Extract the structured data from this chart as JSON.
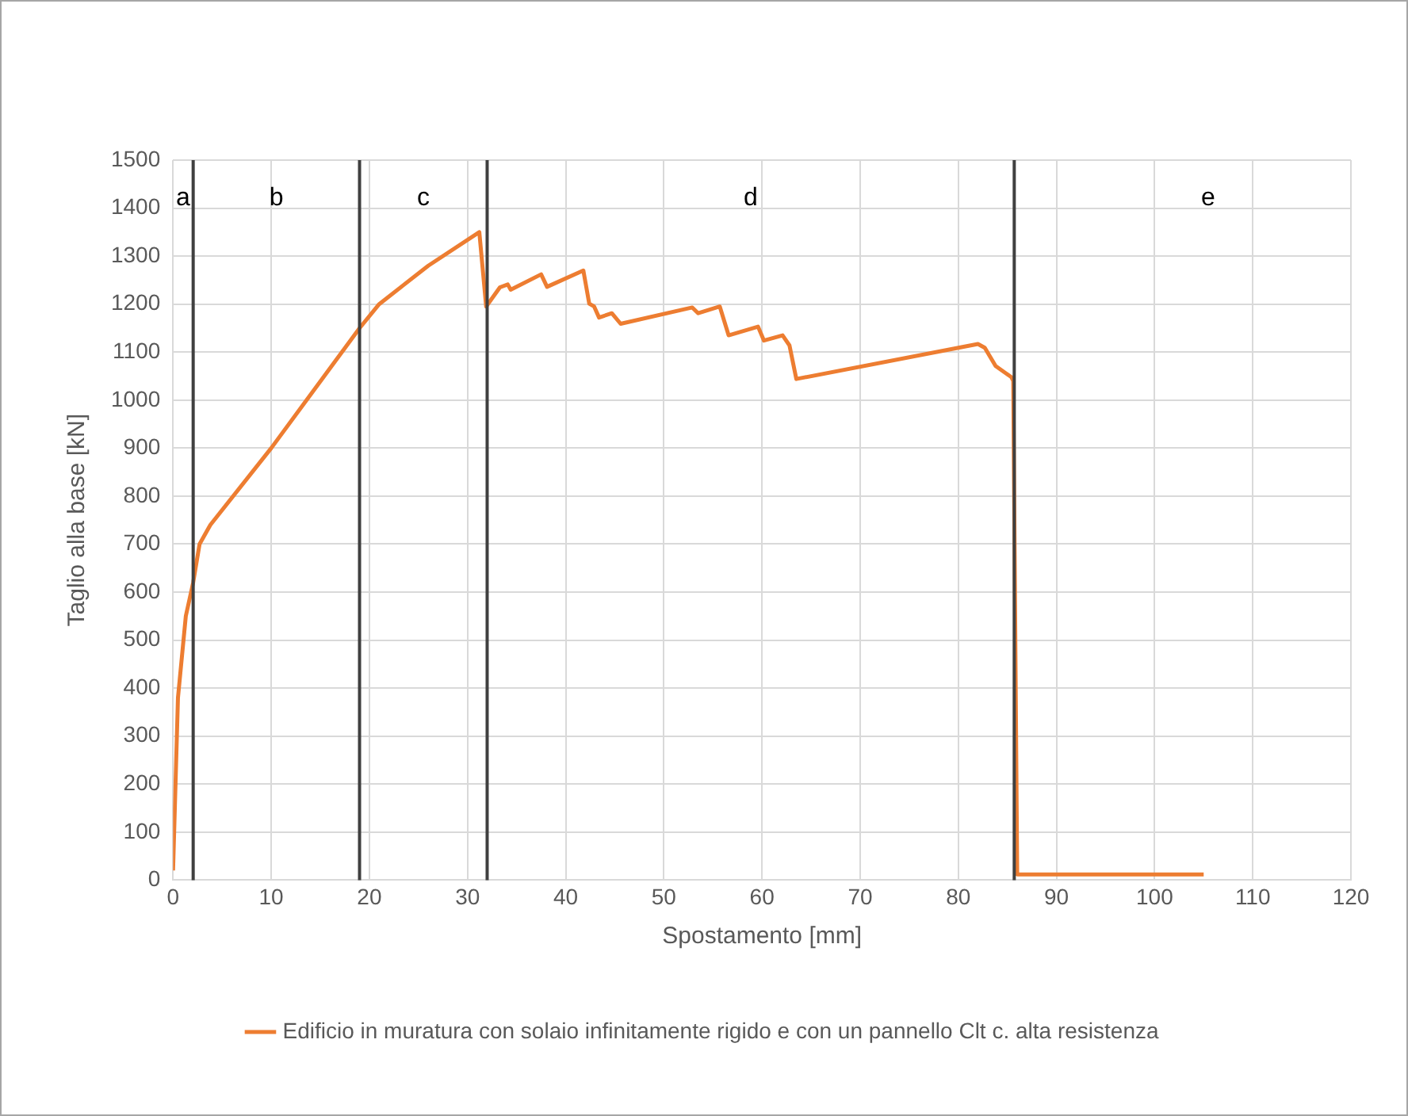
{
  "chart_data": {
    "type": "line",
    "xlabel": "Spostamento [mm]",
    "ylabel": "Taglio alla base [kN]",
    "xlim": [
      0,
      120
    ],
    "xticks": [
      0,
      10,
      20,
      30,
      40,
      50,
      60,
      70,
      80,
      90,
      100,
      110,
      120
    ],
    "ylim": [
      0,
      1500
    ],
    "yticks": [
      0,
      100,
      200,
      300,
      400,
      500,
      600,
      700,
      800,
      900,
      1000,
      1100,
      1200,
      1300,
      1400,
      1500
    ],
    "grid": true,
    "legend": "bottom",
    "marker": "none",
    "line_style": "solid",
    "series": [
      {
        "name": "Edificio in muratura con solaio infinitamente rigido e con un pannello Clt c. alta resistenza",
        "color": "#ed7d31",
        "x": [
          0,
          0.5,
          1.3,
          2.05,
          2.7,
          3.8,
          10,
          19,
          21,
          26,
          31.2,
          31.9,
          33.3,
          34.1,
          34.4,
          37.5,
          38.1,
          41.8,
          42.4,
          42.9,
          43.4,
          44.7,
          45.6,
          52.9,
          53.5,
          55.7,
          56.6,
          59.6,
          60.2,
          62.1,
          62.8,
          63.5,
          82,
          82.7,
          83.8,
          85.4,
          85.6,
          86,
          105
        ],
        "values": [
          20,
          380,
          550,
          620,
          700,
          740,
          900,
          1150,
          1200,
          1280,
          1350,
          1195,
          1235,
          1241,
          1230,
          1262,
          1236,
          1270,
          1201,
          1195,
          1172,
          1181,
          1159,
          1193,
          1181,
          1195,
          1135,
          1153,
          1124,
          1135,
          1114,
          1044,
          1117,
          1109,
          1071,
          1048,
          1040,
          12,
          12
        ]
      }
    ],
    "ref_lines": [
      {
        "axis": "x",
        "value": 2.05,
        "color": "#404040"
      },
      {
        "axis": "x",
        "value": 19,
        "color": "#404040"
      },
      {
        "axis": "x",
        "value": 32,
        "color": "#404040"
      },
      {
        "axis": "x",
        "value": 85.7,
        "color": "#404040"
      }
    ],
    "annotations": [
      "a",
      "b",
      "c",
      "d",
      "e"
    ]
  }
}
